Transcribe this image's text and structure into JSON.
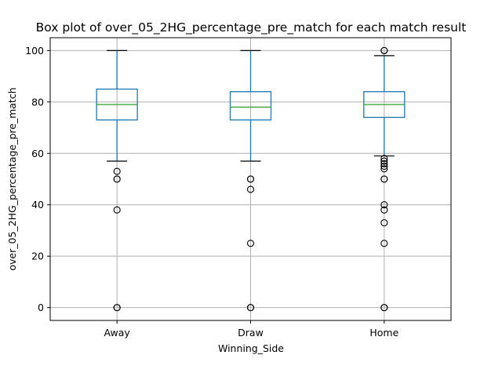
{
  "chart_data": {
    "type": "box",
    "title": "Box plot of over_05_2HG_percentage_pre_match for each match result",
    "xlabel": "Winning_Side",
    "ylabel": "over_05_2HG_percentage_pre_match",
    "ylim": [
      -5,
      105
    ],
    "yticks": [
      0,
      20,
      40,
      60,
      80,
      100
    ],
    "grid": true,
    "box_color": "#1f77b4",
    "median_color": "#2ca02c",
    "grid_color": "#b0b0b0",
    "categories": [
      "Away",
      "Draw",
      "Home"
    ],
    "boxes": [
      {
        "category": "Away",
        "whisker_low": 57,
        "q1": 73,
        "median": 79,
        "q3": 85,
        "whisker_high": 100,
        "outliers": [
          53,
          50,
          50,
          38,
          0,
          0
        ]
      },
      {
        "category": "Draw",
        "whisker_low": 57,
        "q1": 73,
        "median": 78,
        "q3": 84,
        "whisker_high": 100,
        "outliers": [
          50,
          50,
          46,
          25,
          0,
          0
        ]
      },
      {
        "category": "Home",
        "whisker_low": 59,
        "q1": 74,
        "median": 79,
        "q3": 84,
        "whisker_high": 98,
        "outliers": [
          100,
          100,
          58,
          57,
          56,
          55,
          54,
          50,
          50,
          40,
          38,
          33,
          25,
          0,
          0
        ]
      }
    ]
  }
}
